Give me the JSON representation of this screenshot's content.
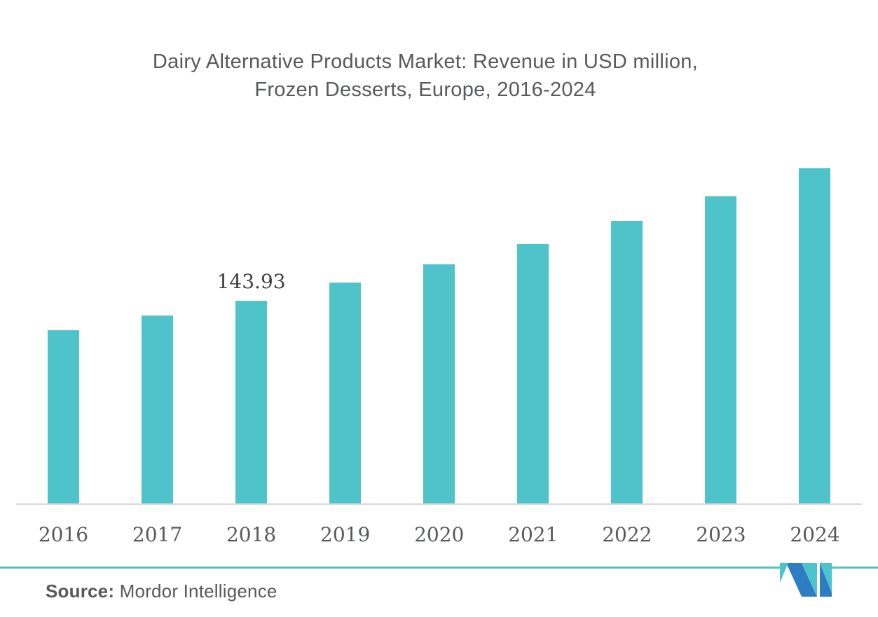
{
  "title": {
    "line1": "Dairy Alternative Products Market: Revenue in USD million,",
    "line2": "Frozen Desserts, Europe, 2016-2024"
  },
  "source": {
    "label": "Source:",
    "name": "Mordor Intelligence"
  },
  "colors": {
    "bar": "#4fc3ca",
    "title_text": "#58595b",
    "tick_text": "#58595b",
    "data_label_text": "#414042",
    "axis_line": "#d9d9d9",
    "divider_line": "#4fc3ca",
    "logo_blue": "#2e7cc1",
    "logo_teal": "#4cc4cc",
    "background": "#ffffff"
  },
  "chart_data": {
    "type": "bar",
    "title": "Dairy Alternative Products Market: Revenue in USD million, Frozen Desserts, Europe, 2016-2024",
    "xlabel": "",
    "ylabel": "",
    "categories": [
      "2016",
      "2017",
      "2018",
      "2019",
      "2020",
      "2021",
      "2022",
      "2023",
      "2024"
    ],
    "values": [
      123.1,
      133.5,
      143.93,
      156.8,
      169.7,
      184.1,
      200.5,
      217.9,
      237.7
    ],
    "value_precision_note": "only 2018 carries a printed data label; other values estimated from bar heights",
    "data_labels": [
      {
        "category": "2018",
        "index": 2,
        "text": "143.93",
        "value": 143.93
      }
    ],
    "ylim": [
      0,
      250
    ],
    "grid": false,
    "legend": false,
    "y_axis_visible": false,
    "bar_color": "#4fc3ca"
  }
}
